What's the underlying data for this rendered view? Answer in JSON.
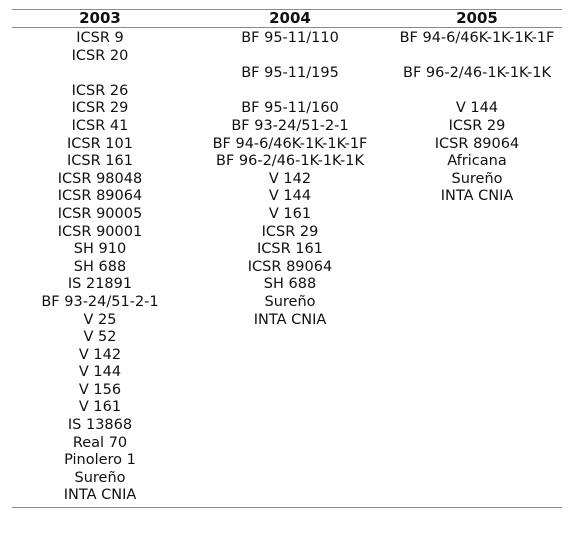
{
  "table": {
    "headers": [
      "2003",
      "2004",
      "2005"
    ],
    "col_2003": [
      "ICSR 9",
      "ICSR 20",
      "ICSR 26",
      "ICSR 29",
      "ICSR 41",
      "ICSR 101",
      "ICSR 161",
      "ICSR 98048",
      "ICSR 89064",
      "ICSR 90005",
      "ICSR 90001",
      "SH 910",
      "SH 688",
      "IS 21891",
      "BF 93-24/51-2-1",
      "V 25",
      "V 52",
      "V 142",
      "V 144",
      "V 156",
      "V 161",
      "IS 13868",
      "Real 70",
      "Pinolero 1",
      "Sureño",
      "INTA CNIA"
    ],
    "col_2004": [
      "BF 95-11/110",
      "BF 95-11/195",
      "BF 95-11/160",
      "BF 93-24/51-2-1",
      "BF 94-6/46K-1K-1K-1F",
      "BF 96-2/46-1K-1K-1K",
      "V 142",
      "V 144",
      "V 161",
      "ICSR 29",
      "ICSR 161",
      "ICSR 89064",
      "SH 688",
      "Sureño",
      "INTA CNIA"
    ],
    "col_2005": [
      "BF 94-6/46K-1K-1K-1F",
      "BF 96-2/46-1K-1K-1K",
      "V 144",
      "ICSR 29",
      "ICSR 89064",
      "Africana",
      "Sureño",
      "INTA CNIA"
    ]
  }
}
